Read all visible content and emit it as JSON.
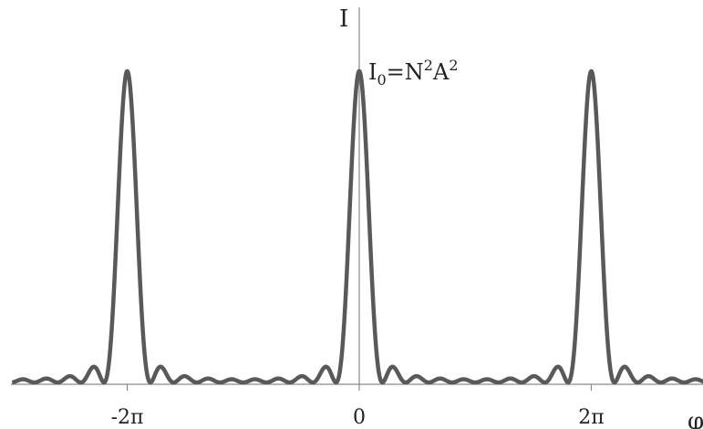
{
  "chart_data": {
    "type": "line",
    "title": "",
    "xlabel": "φ",
    "ylabel": "I",
    "xlim": [
      -9.4,
      11.9
    ],
    "ylim": [
      0,
      1.0
    ],
    "grid": false,
    "x_ticks": [
      {
        "value": -6.2832,
        "label": "-2π"
      },
      {
        "value": 0,
        "label": "0"
      },
      {
        "value": 6.2832,
        "label": "2π"
      }
    ],
    "annotation": {
      "parts": [
        {
          "text": "I",
          "style": "normal"
        },
        {
          "text": "0",
          "style": "sub"
        },
        {
          "text": "=N",
          "style": "normal"
        },
        {
          "text": "2",
          "style": "sup"
        },
        {
          "text": "A",
          "style": "normal"
        },
        {
          "text": "2",
          "style": "sup"
        }
      ]
    },
    "series": [
      {
        "formula": "sin(N·φ/2)² / (N² · sin(φ/2)²)",
        "N": 10,
        "color": "#595959",
        "peak": 1.0
      }
    ]
  }
}
